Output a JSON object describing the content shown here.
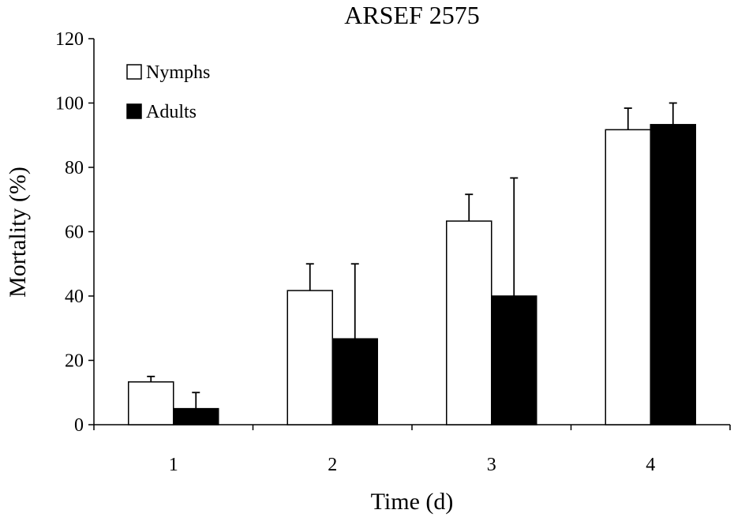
{
  "chart_data": {
    "type": "bar",
    "title": "ARSEF 2575",
    "xlabel": "Time (d)",
    "ylabel": "Mortality (%)",
    "categories": [
      "1",
      "2",
      "3",
      "4"
    ],
    "series": [
      {
        "name": "Nymphs",
        "values": [
          13.3,
          41.7,
          63.3,
          91.7
        ],
        "errors": [
          1.7,
          8.3,
          8.3,
          6.7
        ],
        "color": "#ffffff"
      },
      {
        "name": "Adults",
        "values": [
          5.0,
          26.7,
          40.0,
          93.3
        ],
        "errors": [
          5.0,
          23.3,
          36.7,
          6.7
        ],
        "color": "#000000"
      }
    ],
    "ylim": [
      0,
      120
    ],
    "yticks": [
      "0",
      "20",
      "40",
      "60",
      "80",
      "100",
      "120"
    ],
    "grid": false,
    "legend_position": "top-left"
  }
}
